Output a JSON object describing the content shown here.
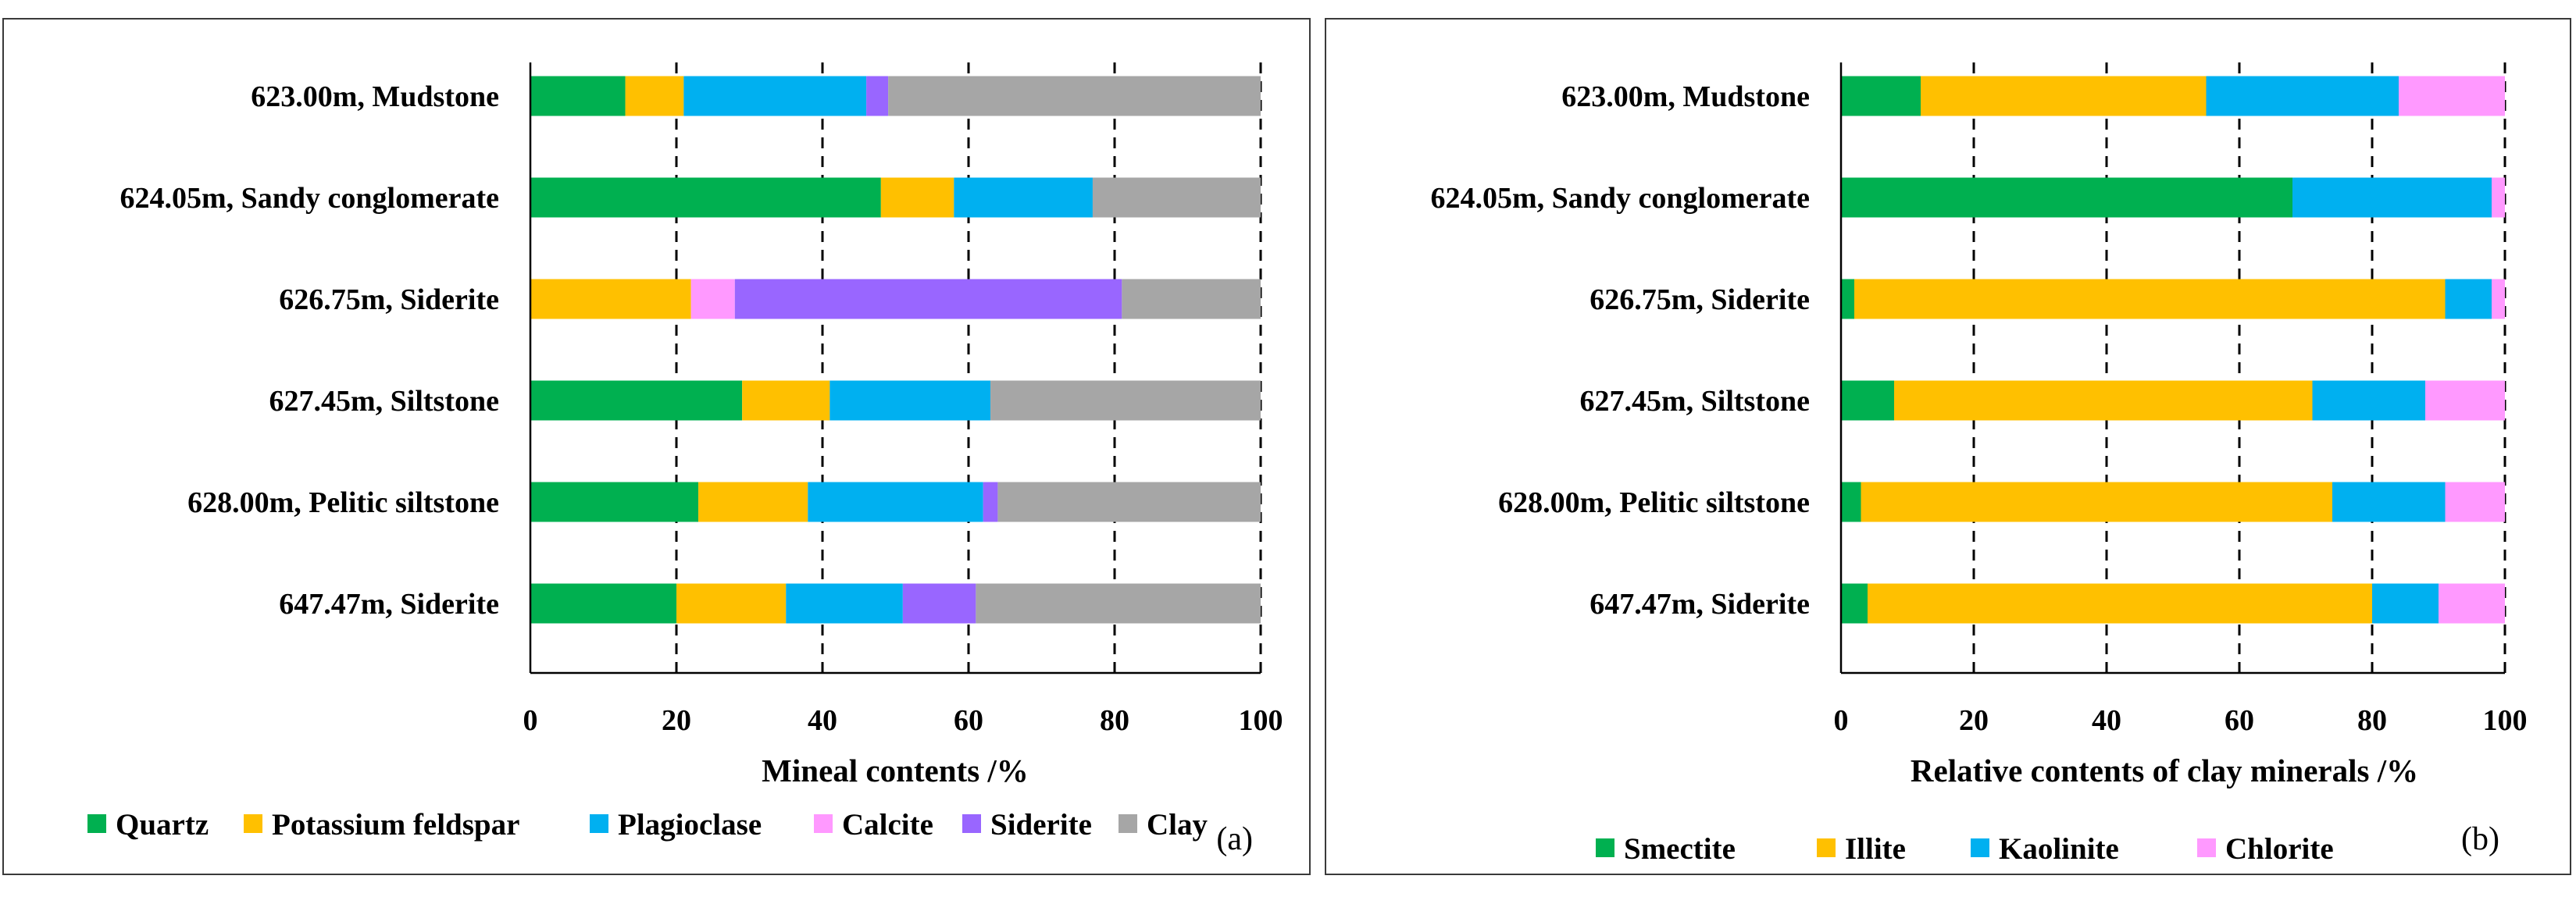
{
  "chart_data": [
    {
      "type": "bar",
      "orientation": "horizontal",
      "stacked": true,
      "panel_label": "(a)",
      "title": "",
      "xlabel": "Mineal contents /%",
      "ylabel": "",
      "xlim": [
        0,
        100
      ],
      "xticks": [
        "0",
        "20",
        "40",
        "60",
        "80",
        "100"
      ],
      "grid": "vertical dashed",
      "legend_position": "bottom",
      "categories": [
        "623.00m, Mudstone",
        "624.05m, Sandy conglomerate",
        "626.75m, Siderite",
        "627.45m, Siltstone",
        "628.00m, Pelitic siltstone",
        "647.47m, Siderite"
      ],
      "series": [
        {
          "name": "Quartz",
          "color": "#00b050",
          "values": [
            13,
            48,
            0,
            29,
            23,
            20
          ]
        },
        {
          "name": "Potassium feldspar",
          "color": "#ffc000",
          "values": [
            8,
            10,
            22,
            12,
            15,
            15
          ]
        },
        {
          "name": "Plagioclase",
          "color": "#00b0f0",
          "values": [
            25,
            19,
            0,
            22,
            24,
            16
          ]
        },
        {
          "name": "Calcite",
          "color": "#ff99ff",
          "values": [
            0,
            0,
            6,
            0,
            0,
            0
          ]
        },
        {
          "name": "Siderite",
          "color": "#9966ff",
          "values": [
            3,
            0,
            53,
            0,
            2,
            10
          ]
        },
        {
          "name": "Clay",
          "color": "#a6a6a6",
          "values": [
            51,
            23,
            19,
            37,
            36,
            39
          ]
        }
      ]
    },
    {
      "type": "bar",
      "orientation": "horizontal",
      "stacked": true,
      "panel_label": "(b)",
      "title": "",
      "xlabel": "Relative contents of clay minerals /%",
      "ylabel": "",
      "xlim": [
        0,
        100
      ],
      "xticks": [
        "0",
        "20",
        "40",
        "60",
        "80",
        "100"
      ],
      "grid": "vertical dashed",
      "legend_position": "bottom",
      "categories": [
        "623.00m, Mudstone",
        "624.05m, Sandy conglomerate",
        "626.75m, Siderite",
        "627.45m, Siltstone",
        "628.00m, Pelitic siltstone",
        "647.47m, Siderite"
      ],
      "series": [
        {
          "name": "Smectite",
          "color": "#00b050",
          "values": [
            12,
            68,
            2,
            8,
            3,
            4
          ]
        },
        {
          "name": "Illite",
          "color": "#ffc000",
          "values": [
            43,
            0,
            89,
            63,
            71,
            76
          ]
        },
        {
          "name": "Kaolinite",
          "color": "#00b0f0",
          "values": [
            29,
            30,
            7,
            17,
            17,
            10
          ]
        },
        {
          "name": "Chlorite",
          "color": "#ff99ff",
          "values": [
            16,
            2,
            2,
            12,
            9,
            10
          ]
        }
      ]
    }
  ]
}
